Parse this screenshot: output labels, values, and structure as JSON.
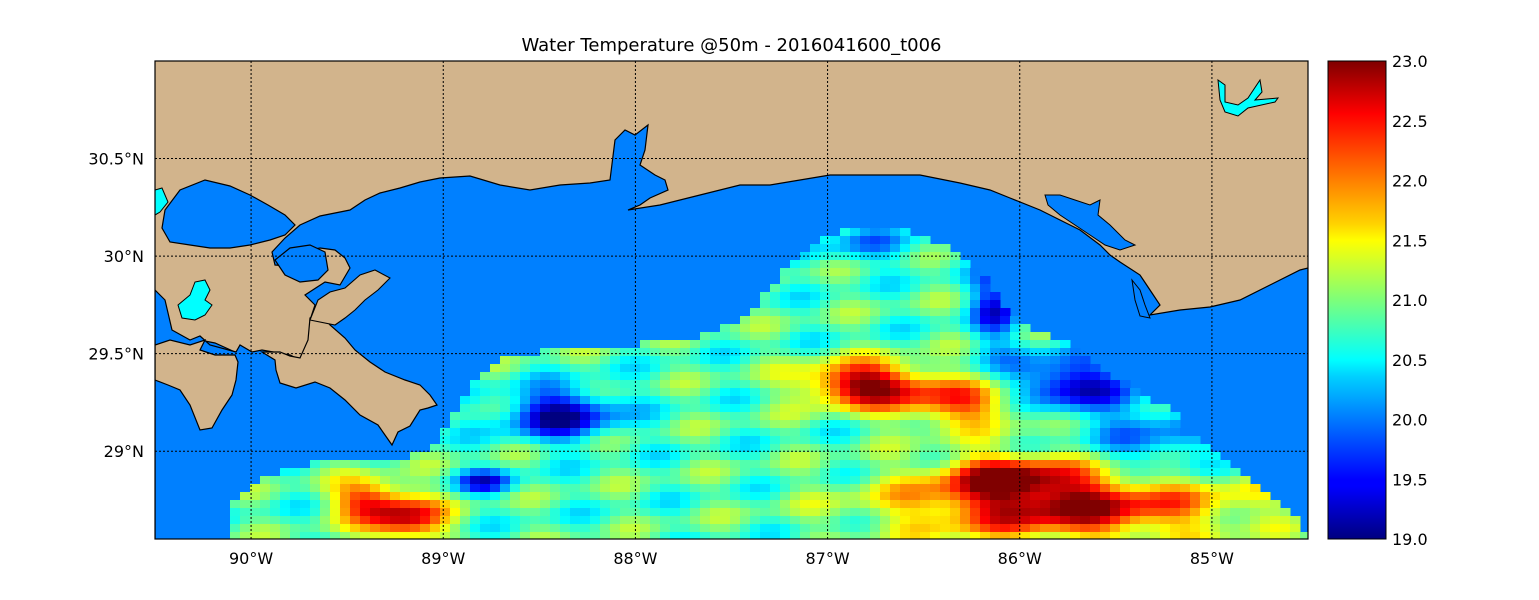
{
  "title": "Water Temperature @50m - 2016041600_t006",
  "map": {
    "lon_range": [
      -90.5,
      -84.5
    ],
    "lat_range": [
      28.55,
      31.0
    ],
    "x_ticks": [
      {
        "value": -90,
        "label": "90°W"
      },
      {
        "value": -89,
        "label": "89°W"
      },
      {
        "value": -88,
        "label": "88°W"
      },
      {
        "value": -87,
        "label": "87°W"
      },
      {
        "value": -86,
        "label": "86°W"
      },
      {
        "value": -85,
        "label": "85°W"
      }
    ],
    "y_ticks": [
      {
        "value": 30.5,
        "label": "30.5°N"
      },
      {
        "value": 30.0,
        "label": "30°N"
      },
      {
        "value": 29.5,
        "label": "29.5°N"
      },
      {
        "value": 29.0,
        "label": "29°N"
      }
    ],
    "grid": "dotted",
    "colors": {
      "land": "#d2b48c",
      "water_no_data": "#0080ff",
      "lakes": "#00ffff",
      "coastline": "#000000"
    }
  },
  "colorbar": {
    "colormap": "jet",
    "range": [
      19.0,
      23.0
    ],
    "tick_labels": [
      "23.0",
      "22.5",
      "22.0",
      "21.5",
      "21.0",
      "20.5",
      "20.0",
      "19.5",
      "19.0"
    ]
  }
}
